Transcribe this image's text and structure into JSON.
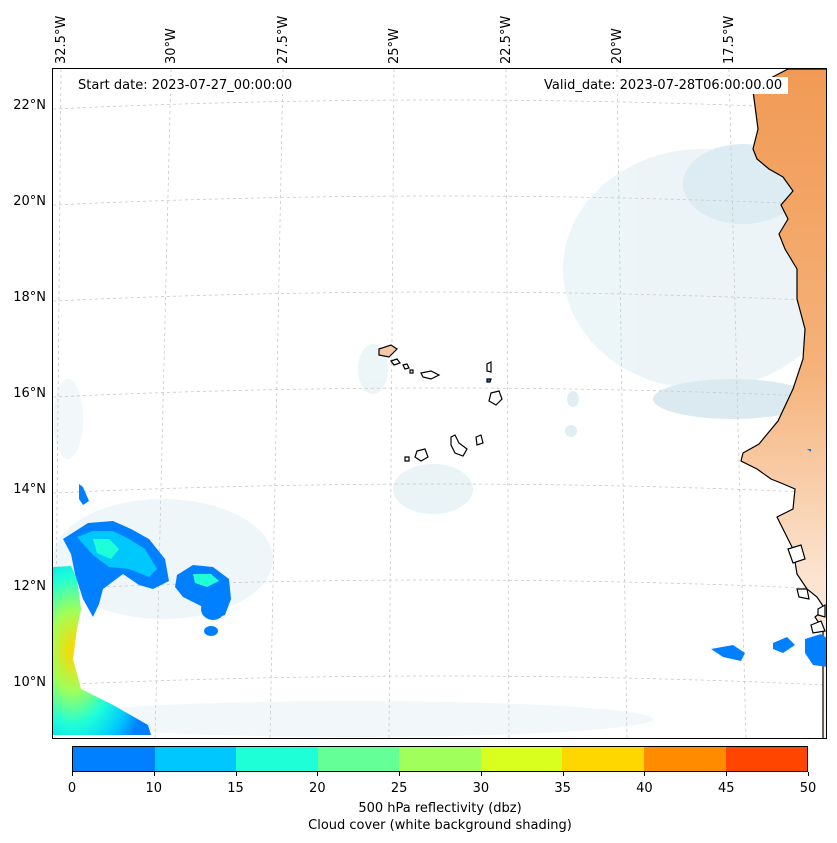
{
  "map": {
    "start_date": "Start date: 2023-07-27_00:00:00",
    "valid_date": "Valid_date: 2023-07-28T06:00:00.00",
    "lon_labels": [
      "32.5°W",
      "30°W",
      "27.5°W",
      "25°W",
      "22.5°W",
      "20°W",
      "17.5°W"
    ],
    "lat_labels": [
      "22°N",
      "20°N",
      "18°N",
      "16°N",
      "14°N",
      "12°N",
      "10°N"
    ],
    "region": "Cape Verde Islands and West African coast",
    "colors": {
      "land_warm": "#f3a15a",
      "cloud_blue": "#d7e9f0",
      "coastline": "#000000",
      "gridline": "#c8c8c8"
    }
  },
  "colorbar": {
    "ticks": [
      "0",
      "10",
      "15",
      "20",
      "25",
      "30",
      "35",
      "40",
      "45",
      "50"
    ],
    "colors": [
      "#0080ff",
      "#00c8ff",
      "#1effd8",
      "#64ff96",
      "#a0ff5a",
      "#d8ff1e",
      "#ffd700",
      "#ff8c00",
      "#ff4500"
    ],
    "label_line1": "500 hPa reflectivity (dbz)",
    "label_line2": "Cloud cover (white background shading)"
  }
}
